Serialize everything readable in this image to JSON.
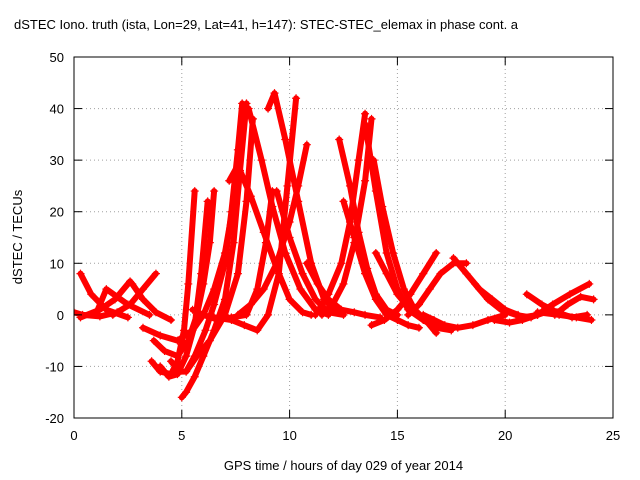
{
  "chart_data": {
    "type": "scatter",
    "title": "dSTEC Iono. truth (ista, Lon=29, Lat=41, h=147): STEC-STEC_elemax in phase cont. a",
    "xlabel": "GPS time / hours of day 029 of year 2014",
    "ylabel": "dSTEC  / TECUs",
    "xlim": [
      0,
      25
    ],
    "ylim": [
      -20,
      50
    ],
    "xticks": [
      0,
      5,
      10,
      15,
      20,
      25
    ],
    "yticks": [
      -20,
      -10,
      0,
      10,
      20,
      30,
      40,
      50
    ],
    "grid": true,
    "marker": "+",
    "color": "#ff0000",
    "series": [
      {
        "x": [
          0.0,
          0.4,
          1.2,
          2.0
        ],
        "y": [
          0.5,
          0.0,
          -0.3,
          0.5
        ]
      },
      {
        "x": [
          0.3,
          0.8,
          1.5,
          2.5
        ],
        "y": [
          8.0,
          4.0,
          1.0,
          -0.5
        ]
      },
      {
        "x": [
          0.3,
          1.2,
          1.9,
          2.6
        ],
        "y": [
          -0.5,
          1.0,
          3.0,
          6.5
        ]
      },
      {
        "x": [
          1.0,
          1.5,
          2.5,
          3.5
        ],
        "y": [
          0.0,
          5.0,
          2.0,
          0.0
        ]
      },
      {
        "x": [
          1.8,
          2.6,
          3.2,
          3.8
        ],
        "y": [
          0.0,
          2.0,
          5.0,
          8.0
        ]
      },
      {
        "x": [
          2.7,
          3.2,
          3.8,
          4.5
        ],
        "y": [
          6.0,
          3.0,
          0.5,
          -1.0
        ]
      },
      {
        "x": [
          3.2,
          4.0,
          4.8,
          5.5,
          6.0,
          6.5,
          7.0,
          7.5
        ],
        "y": [
          -2.5,
          -4.0,
          -5.0,
          -3.0,
          0.0,
          5.0,
          12.0,
          24.0
        ]
      },
      {
        "x": [
          3.7,
          4.2,
          4.8,
          5.3,
          5.7,
          6.0,
          6.3,
          6.5
        ],
        "y": [
          -5.0,
          -7.0,
          -8.0,
          -5.0,
          0.0,
          6.0,
          14.0,
          24.0
        ]
      },
      {
        "x": [
          3.6,
          4.0,
          4.5,
          4.8,
          5.1,
          5.3,
          5.6
        ],
        "y": [
          -9.0,
          -11.0,
          -11.5,
          -9.0,
          -3.0,
          6.0,
          24.0
        ]
      },
      {
        "x": [
          4.0,
          4.4,
          4.8,
          5.2,
          5.6,
          5.9,
          6.2
        ],
        "y": [
          -10.0,
          -12.0,
          -11.5,
          -8.0,
          -2.0,
          8.0,
          22.0
        ]
      },
      {
        "x": [
          4.5,
          4.9,
          5.2,
          5.6,
          6.1,
          6.5,
          7.0,
          7.3,
          7.6,
          7.8
        ],
        "y": [
          -9.0,
          -11.0,
          -11.0,
          -8.0,
          -3.0,
          2.0,
          10.0,
          20.0,
          32.0,
          41.0
        ]
      },
      {
        "x": [
          5.0,
          5.2,
          5.6,
          6.0,
          6.5,
          7.0,
          7.4,
          7.7,
          8.0
        ],
        "y": [
          -16.0,
          -15.0,
          -12.0,
          -8.0,
          -3.0,
          3.0,
          14.0,
          28.0,
          41.0
        ]
      },
      {
        "x": [
          5.2,
          5.7,
          6.3,
          7.0,
          7.6,
          8.0,
          8.3
        ],
        "y": [
          -11.0,
          -8.0,
          -5.0,
          0.0,
          8.0,
          22.0,
          38.0
        ]
      },
      {
        "x": [
          5.5,
          6.0,
          6.7,
          7.3,
          8.0,
          8.5,
          8.9,
          9.2
        ],
        "y": [
          1.0,
          0.0,
          -1.0,
          -0.5,
          0.0,
          5.0,
          14.0,
          24.0
        ]
      },
      {
        "x": [
          6.5,
          7.3,
          7.9,
          8.5,
          9.0,
          9.5,
          9.9,
          10.3
        ],
        "y": [
          -0.5,
          -1.0,
          -2.0,
          -3.0,
          0.0,
          8.0,
          25.0,
          42.0
        ]
      },
      {
        "x": [
          7.6,
          8.2,
          8.8,
          9.4,
          10.0,
          10.4,
          10.8
        ],
        "y": [
          0.0,
          2.0,
          5.0,
          10.0,
          18.0,
          25.0,
          33.0
        ]
      },
      {
        "x": [
          7.2,
          7.6,
          8.2,
          8.8,
          9.4,
          10.0,
          10.6,
          11.0
        ],
        "y": [
          26.0,
          29.0,
          23.0,
          16.0,
          9.0,
          3.0,
          0.5,
          0.0
        ]
      },
      {
        "x": [
          8.1,
          8.7,
          9.2,
          9.8,
          10.5,
          11.2,
          11.8
        ],
        "y": [
          40.0,
          30.0,
          21.0,
          12.0,
          5.0,
          1.0,
          0.0
        ]
      },
      {
        "x": [
          9.0,
          9.3,
          9.8,
          10.4,
          11.0,
          11.6,
          12.2
        ],
        "y": [
          40.0,
          43.0,
          34.0,
          22.0,
          10.0,
          3.0,
          0.5
        ]
      },
      {
        "x": [
          9.4,
          10.0,
          10.6,
          11.2,
          11.8,
          12.5
        ],
        "y": [
          24.0,
          15.0,
          8.0,
          3.0,
          0.5,
          0.0
        ]
      },
      {
        "x": [
          10.8,
          11.3,
          11.8,
          12.4,
          13.0,
          13.5,
          14.2
        ],
        "y": [
          10.0,
          6.0,
          3.0,
          1.0,
          0.5,
          0.0,
          -0.5
        ]
      },
      {
        "x": [
          11.2,
          11.8,
          12.4,
          12.8,
          13.2,
          13.5
        ],
        "y": [
          0.0,
          4.0,
          10.0,
          18.0,
          30.0,
          39.0
        ]
      },
      {
        "x": [
          11.5,
          12.0,
          12.5,
          13.0,
          13.5,
          13.8
        ],
        "y": [
          0.0,
          2.0,
          6.0,
          14.0,
          26.0,
          38.0
        ]
      },
      {
        "x": [
          12.3,
          12.8,
          13.2,
          13.6,
          14.0,
          14.5,
          15.0
        ],
        "y": [
          34.0,
          25.0,
          16.0,
          9.0,
          4.0,
          1.0,
          0.0
        ]
      },
      {
        "x": [
          12.5,
          13.0,
          13.5,
          14.0,
          14.5,
          15.0,
          15.5,
          16.0
        ],
        "y": [
          22.0,
          15.0,
          8.0,
          3.0,
          0.0,
          -1.0,
          -2.0,
          -2.5
        ]
      },
      {
        "x": [
          13.5,
          14.0,
          14.5,
          15.0,
          15.5,
          16.2,
          17.0
        ],
        "y": [
          37.0,
          24.0,
          12.0,
          5.0,
          1.0,
          -1.0,
          -2.0
        ]
      },
      {
        "x": [
          13.9,
          14.3,
          14.8,
          15.3,
          15.8,
          16.3,
          16.8
        ],
        "y": [
          30.0,
          21.0,
          12.0,
          5.0,
          1.0,
          -1.0,
          -3.5
        ]
      },
      {
        "x": [
          14.0,
          14.5,
          15.0,
          15.6,
          16.2,
          16.8,
          17.5
        ],
        "y": [
          12.0,
          8.0,
          4.0,
          1.0,
          -1.0,
          -2.5,
          -3.0
        ]
      },
      {
        "x": [
          13.8,
          14.4,
          15.0,
          15.6,
          16.2,
          16.8
        ],
        "y": [
          -2.0,
          -1.0,
          1.0,
          4.0,
          8.0,
          12.0
        ]
      },
      {
        "x": [
          15.5,
          16.0,
          16.5,
          17.0,
          17.6,
          18.2
        ],
        "y": [
          0.0,
          2.0,
          5.0,
          8.0,
          10.0,
          10.0
        ]
      },
      {
        "x": [
          16.2,
          16.7,
          17.2,
          17.8,
          18.5,
          19.2,
          20.0
        ],
        "y": [
          0.0,
          -1.0,
          -2.0,
          -2.5,
          -2.0,
          -1.0,
          0.0
        ]
      },
      {
        "x": [
          17.6,
          18.2,
          18.8,
          19.4,
          20.0,
          20.6
        ],
        "y": [
          11.0,
          8.0,
          5.0,
          3.0,
          1.0,
          0.0
        ]
      },
      {
        "x": [
          18.6,
          19.2,
          19.8,
          20.5,
          21.2
        ],
        "y": [
          6.0,
          3.0,
          1.0,
          0.0,
          -0.5
        ]
      },
      {
        "x": [
          19.5,
          20.2,
          20.8,
          21.5,
          22.2
        ],
        "y": [
          -1.0,
          -1.5,
          -1.0,
          0.0,
          1.0
        ]
      },
      {
        "x": [
          20.8,
          21.5,
          22.2,
          23.0,
          23.9
        ],
        "y": [
          -0.5,
          0.0,
          2.0,
          4.0,
          6.0
        ]
      },
      {
        "x": [
          21.0,
          21.7,
          22.4,
          23.1,
          23.8
        ],
        "y": [
          4.0,
          2.0,
          0.5,
          -0.5,
          0.0
        ]
      },
      {
        "x": [
          22.3,
          22.9,
          23.5,
          24.1
        ],
        "y": [
          0.0,
          2.0,
          3.5,
          3.0
        ]
      },
      {
        "x": [
          21.5,
          22.5,
          23.3,
          24.0
        ],
        "y": [
          0.5,
          0.0,
          -0.5,
          -1.0
        ]
      }
    ]
  }
}
